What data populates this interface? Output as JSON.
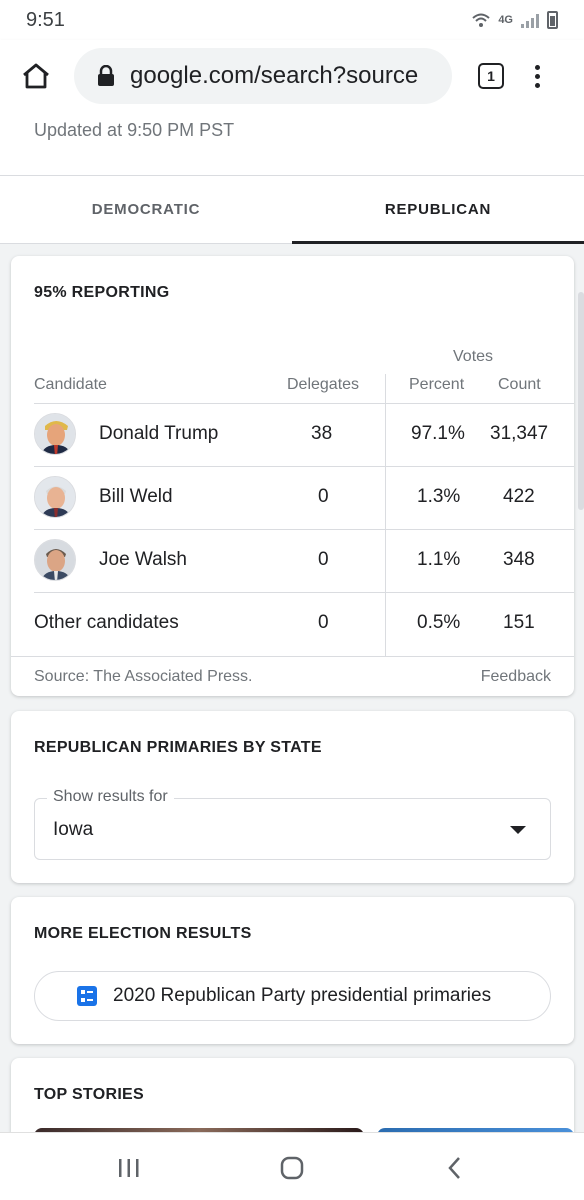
{
  "status_bar": {
    "time": "9:51",
    "network": "4G"
  },
  "browser": {
    "url": "google.com/search?source",
    "tab_count": "1"
  },
  "updated": "Updated at 9:50 PM PST",
  "party_tabs": [
    {
      "label": "DEMOCRATIC",
      "active": false
    },
    {
      "label": "REPUBLICAN",
      "active": true
    }
  ],
  "results": {
    "reporting": "95% REPORTING",
    "votes_label": "Votes",
    "columns": {
      "candidate": "Candidate",
      "delegates": "Delegates",
      "percent": "Percent",
      "count": "Count"
    },
    "rows": [
      {
        "name": "Donald Trump",
        "delegates": "38",
        "percent": "97.1%",
        "count": "31,347"
      },
      {
        "name": "Bill Weld",
        "delegates": "0",
        "percent": "1.3%",
        "count": "422"
      },
      {
        "name": "Joe Walsh",
        "delegates": "0",
        "percent": "1.1%",
        "count": "348"
      },
      {
        "name": "Other candidates",
        "delegates": "0",
        "percent": "0.5%",
        "count": "151"
      }
    ],
    "source": "Source: The Associated Press.",
    "feedback": "Feedback"
  },
  "primaries_by_state": {
    "title": "REPUBLICAN PRIMARIES BY STATE",
    "select_label": "Show results for",
    "select_value": "Iowa"
  },
  "more_results": {
    "title": "MORE ELECTION RESULTS",
    "chip_label": "2020 Republican Party presidential primaries"
  },
  "top_stories": {
    "title": "TOP STORIES"
  },
  "colors": {
    "accent": "#1a73e8",
    "text": "#202124",
    "muted": "#70757a",
    "divider": "#dadce0"
  }
}
